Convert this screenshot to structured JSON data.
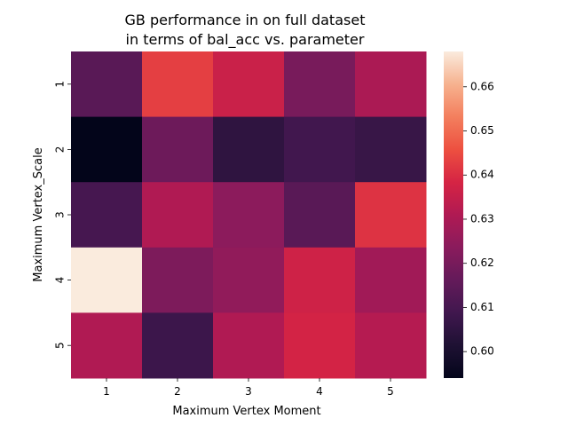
{
  "chart_data": {
    "type": "heatmap",
    "title_lines": [
      "GB performance in on full dataset",
      "in terms of bal_acc vs. parameter"
    ],
    "xlabel": "Maximum Vertex Moment",
    "ylabel": "Maximum Vertex_Scale",
    "x_categories": [
      "1",
      "2",
      "3",
      "4",
      "5"
    ],
    "y_categories": [
      "1",
      "2",
      "3",
      "4",
      "5"
    ],
    "values": [
      [
        0.614,
        0.643,
        0.636,
        0.62,
        0.63
      ],
      [
        0.594,
        0.618,
        0.605,
        0.609,
        0.607
      ],
      [
        0.61,
        0.631,
        0.624,
        0.614,
        0.641
      ],
      [
        0.668,
        0.621,
        0.625,
        0.637,
        0.628
      ],
      [
        0.631,
        0.608,
        0.631,
        0.638,
        0.632
      ]
    ],
    "colorbar": {
      "min": 0.594,
      "max": 0.668,
      "ticks": [
        0.6,
        0.61,
        0.62,
        0.63,
        0.64,
        0.65,
        0.66
      ],
      "tick_labels": [
        "0.60",
        "0.61",
        "0.62",
        "0.63",
        "0.64",
        "0.65",
        "0.66"
      ],
      "colormap": "rocket"
    }
  }
}
